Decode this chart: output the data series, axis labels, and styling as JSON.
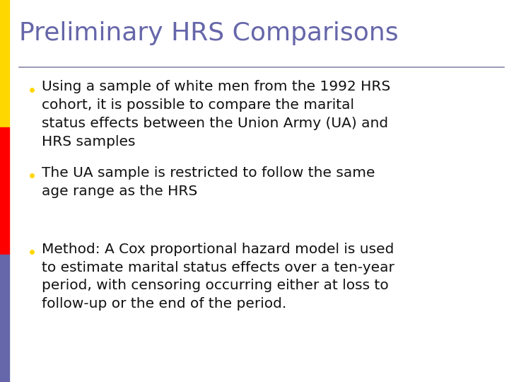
{
  "title": "Preliminary HRS Comparisons",
  "title_color": "#6666aa",
  "title_fontsize": 26,
  "background_color": "#ffffff",
  "left_bar_colors": [
    "#FFD700",
    "#FF0000",
    "#6666AA"
  ],
  "separator_color": "#8888aa",
  "bullet_color": "#FFD700",
  "bullet_fontsize": 14.5,
  "text_color": "#111111",
  "text_fontfamily": "DejaVu Sans",
  "bullets": [
    "Using a sample of white men from the 1992 HRS\ncohort, it is possible to compare the marital\nstatus effects between the Union Army (UA) and\nHRS samples",
    "The UA sample is restricted to follow the same\nage range as the HRS",
    "Method: A Cox proportional hazard model is used\nto estimate marital status effects over a ten-year\nperiod, with censoring occurring either at loss to\nfollow-up or the end of the period."
  ]
}
